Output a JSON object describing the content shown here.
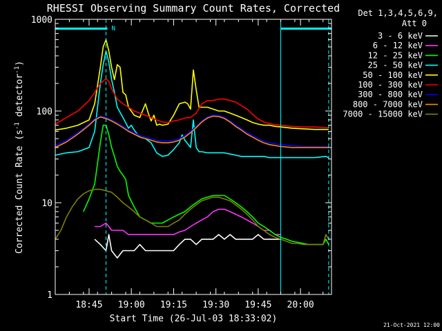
{
  "chart_data": {
    "type": "line",
    "title": "RHESSI Observing Summary Count Rates, Corrected",
    "xlabel": "Start Time (26-Jul-03 18:33:02)",
    "ylabel_main": "Corrected Count Rate (s",
    "ylabel_sup1": "-1",
    "ylabel_mid": " detector",
    "ylabel_sup2": "-1",
    "ylabel_end": ")",
    "x_units": "minutes after 18:33:02",
    "xlim": [
      0,
      98
    ],
    "ylim": [
      1,
      1000
    ],
    "yscale": "log",
    "x_ticks": [
      {
        "value": 12,
        "label": "18:45"
      },
      {
        "value": 27,
        "label": "19:00"
      },
      {
        "value": 42,
        "label": "19:15"
      },
      {
        "value": 57,
        "label": "19:30"
      },
      {
        "value": 72,
        "label": "19:45"
      },
      {
        "value": 87,
        "label": "20:00"
      }
    ],
    "y_ticks": [
      {
        "value": 1,
        "label": "1"
      },
      {
        "value": 10,
        "label": "10"
      },
      {
        "value": 100,
        "label": "100"
      },
      {
        "value": 1000,
        "label": "1000"
      }
    ],
    "legend_header": [
      "Det 1,3,4,5,6,9,",
      "Att 0"
    ],
    "legend_position": "right",
    "date_stamp": "21-Oct-2021 12:00",
    "flag_label": "N",
    "flag_segments": [
      [
        0,
        18.5
      ],
      [
        80,
        98
      ]
    ],
    "vlines_solid": [
      80
    ],
    "vlines_dashed": [
      18,
      97
    ],
    "series": [
      {
        "name": "3 - 6 keV",
        "color": "#ffffff",
        "x": [
          14,
          16,
          18,
          19,
          20,
          22,
          24,
          26,
          28,
          30,
          32,
          34,
          36,
          38,
          40,
          42,
          44,
          46,
          48,
          50,
          52,
          54,
          56,
          58,
          60,
          62,
          64,
          66,
          68,
          70,
          72,
          74,
          76,
          78,
          80
        ],
        "y": [
          4,
          3.5,
          3,
          4.5,
          3,
          2.5,
          3,
          3,
          3,
          3.5,
          3,
          3,
          3,
          3,
          3,
          3,
          3.5,
          4,
          4,
          3.5,
          4,
          4,
          4,
          4.5,
          4,
          4.5,
          4,
          4,
          4,
          4,
          4.5,
          4,
          4,
          4,
          4
        ]
      },
      {
        "name": "6 - 12 keV",
        "color": "#ff33ff",
        "x": [
          14,
          16,
          18,
          19,
          20,
          22,
          24,
          26,
          28,
          30,
          32,
          34,
          36,
          38,
          40,
          42,
          44,
          46,
          48,
          50,
          52,
          54,
          56,
          58,
          60,
          62,
          64,
          66,
          68,
          70,
          72,
          74,
          76,
          78,
          80
        ],
        "y": [
          5.5,
          5.5,
          6,
          5.5,
          5,
          5,
          5,
          4.5,
          4.5,
          4.5,
          4.5,
          4.5,
          4.5,
          4.5,
          4.5,
          4.5,
          4.8,
          5,
          5.5,
          6,
          6.5,
          7,
          8,
          8.5,
          8.5,
          8,
          7.5,
          7,
          6.5,
          6,
          5.5,
          5,
          5,
          4.5,
          4.5
        ]
      },
      {
        "name": "12 - 25 keV",
        "color": "#00ff00",
        "x": [
          10,
          12,
          14,
          16,
          17,
          18,
          19,
          20,
          21,
          22,
          23,
          24,
          25,
          26,
          28,
          30,
          32,
          34,
          36,
          38,
          40,
          42,
          44,
          46,
          48,
          50,
          52,
          54,
          56,
          58,
          60,
          62,
          64,
          66,
          68,
          70,
          72,
          74,
          76,
          78,
          80,
          82,
          84,
          86,
          88,
          90,
          92,
          95,
          96,
          97
        ],
        "y": [
          8,
          11,
          16,
          45,
          70,
          70,
          55,
          40,
          32,
          25,
          22,
          20,
          18,
          12,
          9,
          7,
          6.5,
          6,
          6,
          6,
          6.5,
          7,
          7.5,
          8,
          9,
          10,
          11,
          11.5,
          12,
          12,
          12,
          11,
          10,
          9,
          8,
          7,
          6,
          5.5,
          5,
          4.5,
          4.2,
          4,
          3.8,
          3.7,
          3.6,
          3.5,
          3.5,
          3.5,
          4,
          3.5
        ]
      },
      {
        "name": "25 - 50 keV",
        "color": "#00ffff",
        "x": [
          0,
          4,
          8,
          12,
          14,
          16,
          17,
          18,
          19,
          20,
          21,
          22,
          24,
          26,
          27,
          28,
          30,
          32,
          34,
          36,
          38,
          40,
          42,
          44,
          45,
          46,
          48,
          49,
          50,
          51,
          52,
          54,
          56,
          58,
          60,
          62,
          64,
          66,
          68,
          70,
          72,
          74,
          76,
          78,
          80,
          84,
          88,
          92,
          96,
          97
        ],
        "y": [
          33,
          35,
          36,
          40,
          60,
          200,
          320,
          450,
          340,
          220,
          160,
          110,
          85,
          65,
          70,
          62,
          52,
          50,
          45,
          35,
          32,
          33,
          38,
          45,
          55,
          48,
          40,
          80,
          40,
          36,
          36,
          35,
          35,
          35,
          35,
          34,
          33,
          32,
          32,
          32,
          32,
          32,
          31,
          31,
          31,
          31,
          31,
          31,
          32,
          31
        ]
      },
      {
        "name": "50 - 100 keV",
        "color": "#ffff00",
        "x": [
          0,
          4,
          8,
          12,
          14,
          16,
          17,
          18,
          19,
          20,
          21,
          22,
          23,
          24,
          25,
          26,
          28,
          30,
          32,
          33,
          34,
          35,
          36,
          37,
          38,
          40,
          42,
          44,
          46,
          47,
          48,
          49,
          50,
          51,
          52,
          54,
          56,
          58,
          60,
          62,
          64,
          66,
          68,
          70,
          72,
          74,
          76,
          78,
          80,
          84,
          88,
          92,
          96,
          97
        ],
        "y": [
          62,
          65,
          70,
          80,
          120,
          300,
          500,
          600,
          450,
          300,
          220,
          320,
          300,
          160,
          150,
          110,
          90,
          85,
          120,
          95,
          78,
          90,
          70,
          72,
          70,
          72,
          90,
          120,
          125,
          120,
          105,
          280,
          170,
          110,
          110,
          110,
          105,
          100,
          100,
          95,
          90,
          85,
          80,
          75,
          72,
          70,
          70,
          68,
          67,
          65,
          64,
          63,
          63,
          63
        ]
      },
      {
        "name": "100 - 300 keV",
        "color": "#ff0000",
        "x": [
          0,
          4,
          8,
          12,
          14,
          16,
          18,
          19,
          20,
          22,
          24,
          26,
          28,
          30,
          32,
          34,
          36,
          38,
          40,
          42,
          44,
          46,
          48,
          50,
          52,
          54,
          56,
          58,
          60,
          62,
          64,
          66,
          68,
          70,
          72,
          74,
          76,
          78,
          80,
          84,
          88,
          92,
          96,
          97
        ],
        "y": [
          72,
          85,
          100,
          130,
          160,
          200,
          225,
          210,
          175,
          135,
          120,
          110,
          100,
          95,
          90,
          85,
          80,
          76,
          75,
          78,
          80,
          84,
          85,
          95,
          120,
          130,
          130,
          135,
          135,
          130,
          125,
          115,
          105,
          92,
          82,
          76,
          73,
          71,
          70,
          68,
          67,
          67,
          66,
          66
        ]
      },
      {
        "name": "300 - 800 keV",
        "color": "#0000ff",
        "x": [
          0,
          4,
          8,
          12,
          14,
          16,
          18,
          20,
          22,
          24,
          26,
          28,
          30,
          32,
          34,
          36,
          38,
          40,
          42,
          44,
          46,
          48,
          50,
          52,
          54,
          56,
          58,
          60,
          62,
          64,
          66,
          68,
          70,
          72,
          74,
          76,
          78,
          80,
          84,
          88,
          92,
          96,
          97
        ],
        "y": [
          42,
          48,
          58,
          72,
          82,
          88,
          85,
          80,
          74,
          68,
          62,
          58,
          54,
          52,
          50,
          48,
          47,
          47,
          48,
          50,
          54,
          60,
          68,
          78,
          86,
          90,
          89,
          85,
          78,
          70,
          64,
          58,
          54,
          50,
          47,
          45,
          44,
          43,
          42,
          41,
          41,
          41,
          41
        ]
      },
      {
        "name": "800 - 7000 keV",
        "color": "#ff8800",
        "x": [
          0,
          4,
          8,
          12,
          14,
          16,
          18,
          20,
          22,
          24,
          26,
          28,
          30,
          32,
          34,
          36,
          38,
          40,
          42,
          44,
          46,
          48,
          50,
          52,
          54,
          56,
          58,
          60,
          62,
          64,
          66,
          68,
          70,
          72,
          74,
          76,
          78,
          80,
          84,
          88,
          92,
          96,
          97
        ],
        "y": [
          40,
          46,
          56,
          70,
          80,
          86,
          83,
          78,
          72,
          66,
          60,
          56,
          52,
          50,
          48,
          46,
          45,
          45,
          46,
          48,
          52,
          58,
          66,
          76,
          84,
          88,
          87,
          83,
          76,
          68,
          62,
          56,
          52,
          48,
          45,
          43,
          42,
          41,
          40,
          40,
          40,
          40,
          40
        ]
      },
      {
        "name": "7000 - 15000 keV",
        "color": "#808000",
        "x": [
          0,
          2,
          4,
          6,
          8,
          10,
          12,
          14,
          16,
          18,
          20,
          22,
          24,
          26,
          28,
          30,
          32,
          34,
          36,
          38,
          40,
          42,
          44,
          46,
          48,
          50,
          52,
          54,
          56,
          58,
          60,
          62,
          64,
          66,
          68,
          70,
          72,
          74,
          76,
          78,
          80,
          82,
          84,
          86,
          88,
          90,
          92,
          95,
          96,
          97
        ],
        "y": [
          4,
          5,
          7,
          9,
          11,
          12.5,
          13.5,
          14,
          14,
          13.5,
          13,
          11.5,
          10,
          9,
          8,
          7,
          6.5,
          6,
          5.5,
          5.5,
          5.5,
          6,
          6.5,
          7.5,
          8.5,
          9.5,
          10.5,
          11,
          11.5,
          11.5,
          11,
          10.5,
          9.5,
          8.5,
          7.5,
          6.5,
          5.5,
          5,
          4.5,
          4.2,
          4,
          3.8,
          3.6,
          3.6,
          3.5,
          3.5,
          3.5,
          3.5,
          4.5,
          4
        ]
      }
    ]
  }
}
